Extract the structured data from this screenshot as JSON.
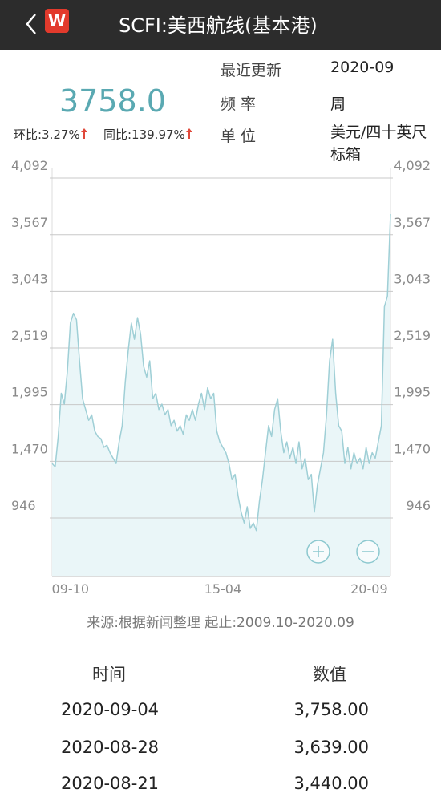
{
  "header": {
    "title": "SCFI:美西航线(基本港)",
    "logo": "W"
  },
  "summary": {
    "value": "3758.0",
    "mom": "环比:3.27%",
    "yoy": "同比:139.97%"
  },
  "info": [
    {
      "label": "最近更新",
      "value": "2020-09"
    },
    {
      "label": "频 率",
      "value": "周"
    },
    {
      "label": "单 位",
      "value": "美元/四十英尺标箱"
    }
  ],
  "chart_data": {
    "type": "line",
    "categories": [
      null,
      null,
      null,
      null,
      null,
      null,
      "09-10",
      null,
      null,
      null,
      null,
      null,
      null,
      null,
      null,
      null,
      null,
      null,
      null,
      null,
      null,
      null,
      null,
      null,
      null,
      null,
      null,
      null,
      null,
      null,
      null,
      null,
      null,
      null,
      null,
      null,
      null,
      null,
      null,
      null,
      null,
      null,
      null,
      null,
      null,
      null,
      null,
      null,
      null,
      null,
      null,
      null,
      null,
      null,
      null,
      null,
      "15-04",
      null,
      null,
      null,
      null,
      null,
      null,
      null,
      null,
      null,
      null,
      null,
      null,
      null,
      null,
      null,
      null,
      null,
      null,
      null,
      null,
      null,
      null,
      null,
      null,
      null,
      null,
      null,
      null,
      null,
      null,
      null,
      null,
      null,
      null,
      null,
      null,
      null,
      null,
      null,
      null,
      null,
      null,
      null,
      null,
      null,
      null,
      null,
      "20-09",
      null,
      null,
      null,
      null,
      null,
      null,
      null
    ],
    "values": [
      1450,
      1420,
      1700,
      2100,
      2000,
      2300,
      2750,
      2840,
      2780,
      2400,
      2050,
      1950,
      1850,
      1900,
      1750,
      1700,
      1680,
      1600,
      1620,
      1550,
      1500,
      1450,
      1650,
      1800,
      2200,
      2500,
      2750,
      2600,
      2800,
      2650,
      2350,
      2250,
      2400,
      2050,
      2100,
      1950,
      2000,
      1900,
      1950,
      1800,
      1850,
      1750,
      1800,
      1720,
      1900,
      1850,
      1950,
      1850,
      2000,
      2100,
      1950,
      2150,
      2050,
      2100,
      1750,
      1650,
      1600,
      1550,
      1450,
      1300,
      1350,
      1150,
      1000,
      900,
      1050,
      850,
      900,
      830,
      1100,
      1300,
      1550,
      1800,
      1700,
      1950,
      2050,
      1750,
      1550,
      1650,
      1500,
      1600,
      1450,
      1650,
      1400,
      1500,
      1300,
      1350,
      1000,
      1250,
      1400,
      1550,
      1900,
      2400,
      2600,
      2100,
      1800,
      1750,
      1450,
      1600,
      1400,
      1550,
      1450,
      1500,
      1400,
      1600,
      1450,
      1550,
      1500,
      1650,
      1800,
      2900,
      3000,
      3758
    ],
    "color": "#9fcfd6",
    "fill": "#eaf6f8",
    "ylim": [
      412,
      4092
    ],
    "yticks": [
      {
        "value": 946,
        "label": "946"
      },
      {
        "value": 1470,
        "label": "1,470"
      },
      {
        "value": 1995,
        "label": "1,995"
      },
      {
        "value": 2519,
        "label": "2,519"
      },
      {
        "value": 3043,
        "label": "3,043"
      },
      {
        "value": 3567,
        "label": "3,567"
      },
      {
        "value": 4092,
        "label": "4,092"
      }
    ],
    "grid": true
  },
  "source": "来源:根据新闻整理 起止:2009.10-2020.09",
  "table": {
    "columns": [
      "时间",
      "数值"
    ],
    "rows": [
      [
        "2020-09-04",
        "3,758.00"
      ],
      [
        "2020-08-28",
        "3,639.00"
      ],
      [
        "2020-08-21",
        "3,440.00"
      ]
    ]
  }
}
